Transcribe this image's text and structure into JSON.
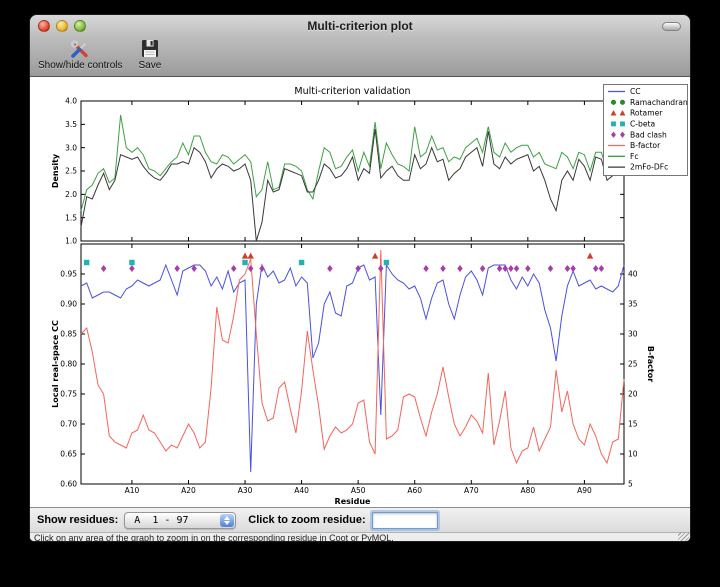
{
  "window": {
    "title": "Multi-criterion plot"
  },
  "toolbar": {
    "buttons": [
      {
        "label": "Show/hide controls",
        "icon": "tools-icon"
      },
      {
        "label": "Save",
        "icon": "floppy-disk-icon"
      }
    ]
  },
  "controls": {
    "show_residues_label": "Show residues:",
    "residue_range_value": "A  1 - 97",
    "zoom_residue_label": "Click to zoom residue:",
    "zoom_residue_value": ""
  },
  "status_bar": {
    "text": "Click on any area of the graph to zoom in on the corresponding residue in Coot or PyMOL."
  },
  "chart_data": {
    "type": "line",
    "title": "Multi-criterion validation",
    "x_axis": {
      "label": "Residue",
      "chain": "A",
      "range": [
        1,
        97
      ],
      "tick_values": [
        10,
        20,
        30,
        40,
        50,
        60,
        70,
        80,
        90
      ],
      "tick_labels": [
        "A10",
        "A20",
        "A30",
        "A40",
        "A50",
        "A60",
        "A70",
        "A80",
        "A90"
      ]
    },
    "subplots": [
      {
        "ylabel": "Density",
        "ylim": [
          1.0,
          4.0
        ],
        "yticks": [
          1.0,
          1.5,
          2.0,
          2.5,
          3.0,
          3.5,
          4.0
        ],
        "series": [
          {
            "name": "Fc",
            "color": "#3fa044",
            "values": [
              1.65,
              2.1,
              2.2,
              2.45,
              2.55,
              2.25,
              2.35,
              3.7,
              3.0,
              2.9,
              3.0,
              2.85,
              2.55,
              2.5,
              2.4,
              2.55,
              2.7,
              2.8,
              3.1,
              2.85,
              3.25,
              3.25,
              2.9,
              2.7,
              2.65,
              2.85,
              2.8,
              2.65,
              2.75,
              2.85,
              2.7,
              1.95,
              2.1,
              2.7,
              2.1,
              2.15,
              2.65,
              2.65,
              2.6,
              2.5,
              2.1,
              1.9,
              2.5,
              3.0,
              2.9,
              2.55,
              2.6,
              2.8,
              2.95,
              2.5,
              2.9,
              2.6,
              3.55,
              2.55,
              3.1,
              2.85,
              2.65,
              2.6,
              2.5,
              3.45,
              2.8,
              2.9,
              3.25,
              2.95,
              3.0,
              2.7,
              2.8,
              2.75,
              3.0,
              3.1,
              3.2,
              2.9,
              3.45,
              2.9,
              2.8,
              3.1,
              2.9,
              3.0,
              3.05,
              3.05,
              2.8,
              2.9,
              2.65,
              2.6,
              2.55,
              2.9,
              2.8,
              2.55,
              2.9,
              2.85,
              2.5,
              2.9,
              2.9,
              2.5,
              2.55,
              3.3,
              3.25
            ]
          },
          {
            "name": "2mFo-DFc",
            "color": "#383838",
            "values": [
              1.3,
              1.95,
              1.9,
              2.2,
              2.45,
              2.1,
              2.3,
              2.85,
              2.8,
              2.75,
              2.8,
              2.6,
              2.45,
              2.35,
              2.3,
              2.45,
              2.65,
              2.65,
              2.7,
              2.65,
              3.0,
              2.9,
              2.7,
              2.35,
              2.55,
              2.65,
              2.6,
              2.5,
              2.55,
              2.65,
              2.3,
              1.0,
              1.4,
              2.3,
              2.05,
              2.1,
              2.55,
              2.5,
              2.45,
              2.4,
              2.05,
              2.05,
              2.3,
              2.65,
              2.55,
              2.35,
              2.4,
              2.55,
              2.8,
              2.3,
              2.55,
              2.45,
              3.4,
              2.35,
              2.5,
              2.6,
              2.4,
              2.3,
              2.3,
              2.85,
              2.55,
              2.65,
              3.0,
              2.7,
              2.75,
              2.3,
              2.45,
              2.55,
              2.8,
              2.9,
              3.0,
              2.6,
              3.35,
              2.65,
              2.55,
              2.8,
              2.65,
              2.75,
              2.8,
              2.85,
              2.5,
              2.6,
              2.3,
              1.9,
              1.65,
              2.3,
              2.5,
              2.3,
              2.75,
              2.6,
              2.3,
              2.8,
              2.75,
              2.3,
              2.4,
              2.9,
              3.0
            ]
          }
        ]
      },
      {
        "ylabel_left": "Local real-space CC",
        "ylim_left": [
          0.6,
          1.0
        ],
        "yticks_left": [
          0.6,
          0.65,
          0.7,
          0.75,
          0.8,
          0.85,
          0.9,
          0.95
        ],
        "ylabel_right": "B-factor",
        "ylim_right": [
          5,
          45
        ],
        "yticks_right": [
          5,
          10,
          15,
          20,
          25,
          30,
          35,
          40
        ],
        "series": [
          {
            "name": "CC",
            "axis": "left",
            "color": "#4a50e2",
            "values": [
              0.93,
              0.935,
              0.91,
              0.915,
              0.92,
              0.92,
              0.915,
              0.91,
              0.925,
              0.93,
              0.94,
              0.935,
              0.93,
              0.935,
              0.94,
              0.965,
              0.94,
              0.915,
              0.955,
              0.96,
              0.965,
              0.965,
              0.955,
              0.93,
              0.945,
              0.925,
              0.955,
              0.92,
              0.935,
              0.94,
              0.62,
              0.9,
              0.965,
              0.945,
              0.955,
              0.935,
              0.94,
              0.96,
              0.93,
              0.945,
              0.935,
              0.81,
              0.835,
              0.9,
              0.92,
              0.885,
              0.88,
              0.93,
              0.935,
              0.96,
              0.965,
              0.94,
              0.945,
              0.715,
              0.965,
              0.95,
              0.94,
              0.935,
              0.925,
              0.93,
              0.91,
              0.875,
              0.91,
              0.935,
              0.94,
              0.9,
              0.875,
              0.915,
              0.945,
              0.955,
              0.94,
              0.915,
              0.96,
              0.965,
              0.965,
              0.965,
              0.94,
              0.925,
              0.945,
              0.93,
              0.95,
              0.935,
              0.89,
              0.86,
              0.805,
              0.88,
              0.93,
              0.955,
              0.93,
              0.935,
              0.94,
              0.925,
              0.93,
              0.925,
              0.92,
              0.93,
              0.965
            ]
          },
          {
            "name": "B-factor",
            "axis": "right",
            "color": "#f4655b",
            "values": [
              30,
              31,
              27,
              21.5,
              20,
              13,
              12,
              11.5,
              11,
              13.5,
              14,
              16.5,
              14,
              13.5,
              12,
              10.5,
              11.5,
              11,
              13,
              15,
              13.5,
              11,
              12,
              21,
              34.5,
              29,
              28.5,
              33,
              39,
              40,
              42.5,
              30,
              18.5,
              15.5,
              16,
              21,
              22,
              17.5,
              13.5,
              20.5,
              30.5,
              24,
              18,
              10.8,
              13,
              14.5,
              13.5,
              14,
              15,
              18.5,
              19,
              12,
              10,
              44,
              12.5,
              13,
              14,
              19.5,
              20,
              19.5,
              16,
              13,
              17,
              20,
              24.5,
              19.5,
              15,
              13,
              14.5,
              16.5,
              15.5,
              13.5,
              23.5,
              11.5,
              15.5,
              20.5,
              11,
              8.5,
              10.5,
              11,
              14.5,
              10.5,
              12.5,
              14.5,
              24,
              17,
              20.5,
              15,
              12.5,
              11.5,
              15,
              13,
              10,
              8.5,
              12,
              12.5,
              22.5
            ]
          }
        ],
        "markers": [
          {
            "name": "Ramachandran",
            "shape": "circle",
            "color": "#238c23",
            "residues": []
          },
          {
            "name": "Rotamer",
            "shape": "triangle",
            "color": "#d23b28",
            "residues": [
              30,
              31,
              53,
              91
            ]
          },
          {
            "name": "C-beta",
            "shape": "square",
            "color": "#1fb3b3",
            "residues": [
              2,
              10,
              30,
              40,
              55
            ]
          },
          {
            "name": "Bad clash",
            "shape": "diamond",
            "color": "#a83ca8",
            "residues": [
              5,
              10,
              18,
              21,
              28,
              31,
              33,
              45,
              50,
              54,
              62,
              65,
              68,
              72,
              75,
              76,
              77,
              78,
              80,
              84,
              87,
              88,
              92,
              93
            ]
          }
        ]
      }
    ],
    "legend": [
      {
        "label": "CC",
        "glyph": "line",
        "color": "#4a50e2"
      },
      {
        "label": "Ramachandran",
        "glyph": "circle",
        "color": "#238c23"
      },
      {
        "label": "Rotamer",
        "glyph": "triangle",
        "color": "#d23b28"
      },
      {
        "label": "C-beta",
        "glyph": "square",
        "color": "#1fb3b3"
      },
      {
        "label": "Bad clash",
        "glyph": "diamond",
        "color": "#a83ca8"
      },
      {
        "label": "B-factor",
        "glyph": "line",
        "color": "#f4655b"
      },
      {
        "label": "Fc",
        "glyph": "line",
        "color": "#3fa044"
      },
      {
        "label": "2mFo-DFc",
        "glyph": "line",
        "color": "#383838"
      }
    ]
  }
}
